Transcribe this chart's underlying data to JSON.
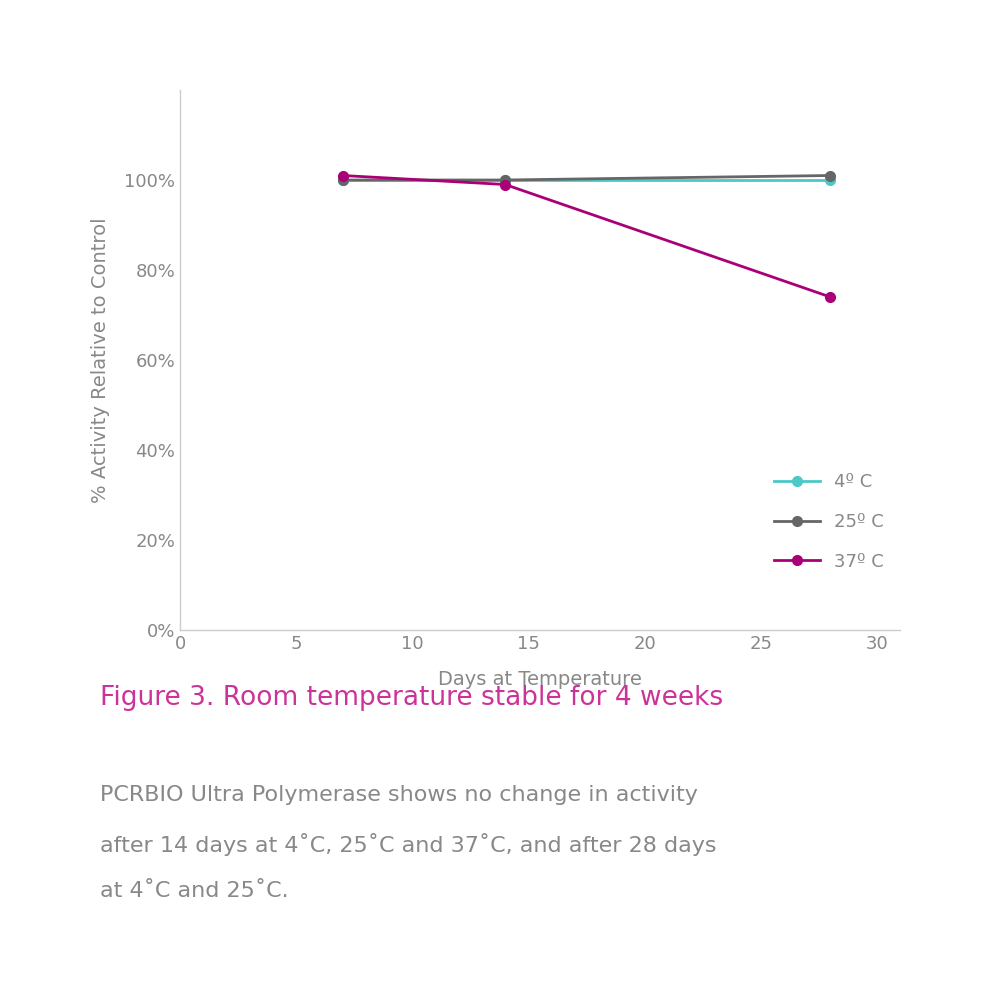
{
  "series": [
    {
      "label": "4º C",
      "x": [
        7,
        14,
        28
      ],
      "y": [
        100,
        100,
        100
      ],
      "color": "#4DC8C8",
      "linewidth": 2.0,
      "markersize": 7
    },
    {
      "label": "25º C",
      "x": [
        7,
        14,
        28
      ],
      "y": [
        100,
        100,
        101
      ],
      "color": "#666666",
      "linewidth": 2.0,
      "markersize": 7
    },
    {
      "label": "37º C",
      "x": [
        7,
        14,
        28
      ],
      "y": [
        101,
        99,
        74
      ],
      "color": "#AA0077",
      "linewidth": 2.0,
      "markersize": 7
    }
  ],
  "xlabel": "Days at Temperature",
  "ylabel": "% Activity Relative to Control",
  "xlim": [
    0,
    31
  ],
  "ylim": [
    0,
    120
  ],
  "xticks": [
    0,
    5,
    10,
    15,
    20,
    25,
    30
  ],
  "yticks": [
    0,
    20,
    40,
    60,
    80,
    100
  ],
  "ytick_labels": [
    "0%",
    "20%",
    "40%",
    "60%",
    "80%",
    "100%"
  ],
  "background_color": "#ffffff",
  "axis_color": "#cccccc",
  "tick_color": "#888888",
  "label_color": "#888888",
  "figure_title": "Figure 3. Room temperature stable for 4 weeks",
  "figure_title_color": "#CC3399",
  "body_text_line1": "PCRBIO Ultra Polymerase shows no change in activity",
  "body_text_line2": "after 14 days at 4˚C, 25˚C and 37˚C, and after 28 days",
  "body_text_line3": "at 4˚C and 25˚C.",
  "body_text_color": "#888888",
  "legend_fontsize": 13,
  "axis_label_fontsize": 14,
  "tick_fontsize": 13,
  "body_fontsize": 16,
  "title_fontsize": 19
}
